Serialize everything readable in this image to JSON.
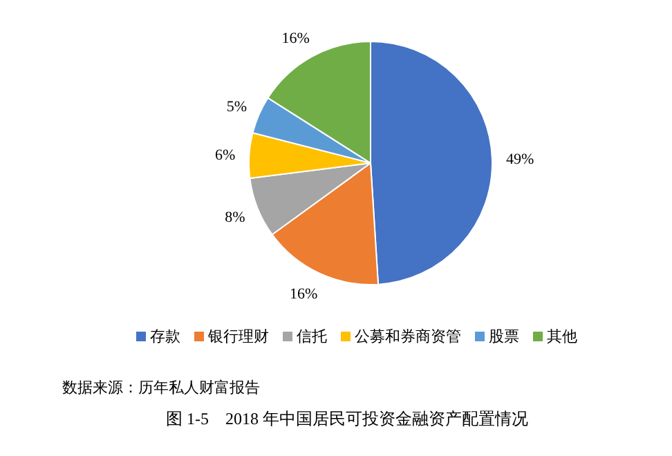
{
  "chart_data": {
    "type": "pie",
    "title": "图 1-5　2018 年中国居民可投资金融资产配置情况",
    "categories": [
      "存款",
      "银行理财",
      "信托",
      "公募和券商资管",
      "股票",
      "其他"
    ],
    "values": [
      49,
      16,
      8,
      6,
      5,
      16
    ],
    "value_labels": [
      "49%",
      "16%",
      "8%",
      "6%",
      "5%",
      "16%"
    ],
    "colors": [
      "#4472c4",
      "#ed7d31",
      "#a5a5a5",
      "#ffc000",
      "#5b9bd5",
      "#70ad47"
    ],
    "legend": "bottom",
    "annotations": [
      "数据来源：历年私人财富报告"
    ]
  }
}
